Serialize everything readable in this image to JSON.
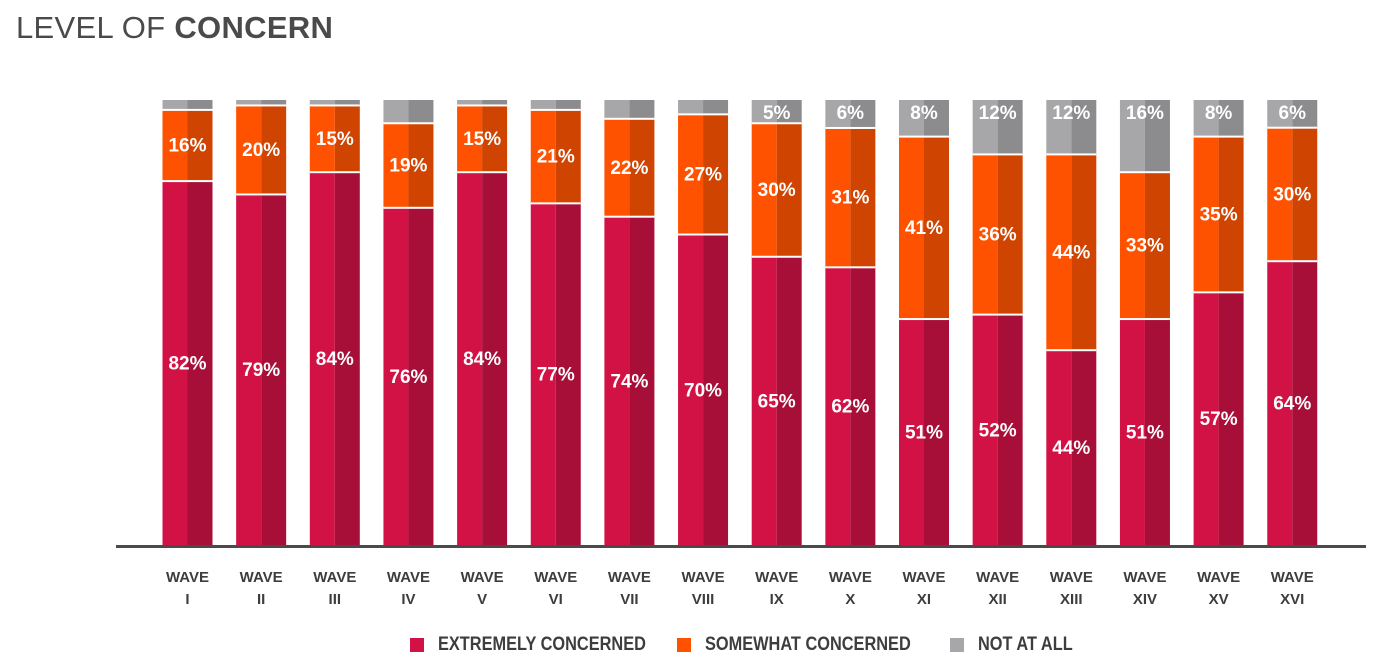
{
  "title": {
    "light": "LEVEL OF",
    "bold": "CONCERN"
  },
  "colors": {
    "extremely": "#d21245",
    "extremely_shade": "#a80f38",
    "somewhat": "#ff5200",
    "somewhat_shade": "#cf4400",
    "notatall": "#a7a7a9",
    "notatall_shade": "#8c8c8e",
    "axis": "#4a4a4a",
    "tick_text": "#3d3d3d"
  },
  "chart_data": {
    "type": "bar",
    "stacked": true,
    "title": "LEVEL OF CONCERN",
    "categories": [
      [
        "WAVE",
        "I"
      ],
      [
        "WAVE",
        "II"
      ],
      [
        "WAVE",
        "III"
      ],
      [
        "WAVE",
        "IV"
      ],
      [
        "WAVE",
        "V"
      ],
      [
        "WAVE",
        "VI"
      ],
      [
        "WAVE",
        "VII"
      ],
      [
        "WAVE",
        "VIII"
      ],
      [
        "WAVE",
        "IX"
      ],
      [
        "WAVE",
        "X"
      ],
      [
        "WAVE",
        "XI"
      ],
      [
        "WAVE",
        "XII"
      ],
      [
        "WAVE",
        "XIII"
      ],
      [
        "WAVE",
        "XIV"
      ],
      [
        "WAVE",
        "XV"
      ],
      [
        "WAVE",
        "XVI"
      ]
    ],
    "series": [
      {
        "name": "EXTREMELY CONCERNED",
        "color_key": "extremely",
        "values": [
          82,
          79,
          84,
          76,
          84,
          77,
          74,
          70,
          65,
          62,
          51,
          52,
          44,
          51,
          57,
          64
        ],
        "labels": [
          "82%",
          "79%",
          "84%",
          "76%",
          "84%",
          "77%",
          "74%",
          "70%",
          "65%",
          "62%",
          "51%",
          "52%",
          "44%",
          "51%",
          "57%",
          "64%"
        ]
      },
      {
        "name": "SOMEWHAT CONCERNED",
        "color_key": "somewhat",
        "values": [
          16,
          20,
          15,
          19,
          15,
          21,
          22,
          27,
          30,
          31,
          41,
          36,
          44,
          33,
          35,
          30
        ],
        "labels": [
          "16%",
          "20%",
          "15%",
          "19%",
          "15%",
          "21%",
          "22%",
          "27%",
          "30%",
          "31%",
          "41%",
          "36%",
          "44%",
          "33%",
          "35%",
          "30%"
        ]
      },
      {
        "name": "NOT AT ALL",
        "color_key": "notatall",
        "values": [
          2,
          1,
          1,
          5,
          1,
          2,
          4,
          3,
          5,
          6,
          8,
          12,
          12,
          16,
          8,
          6
        ],
        "labels": [
          "",
          "",
          "",
          "",
          "",
          "",
          "",
          "",
          "5%",
          "6%",
          "8%",
          "12%",
          "12%",
          "16%",
          "8%",
          "6%"
        ]
      }
    ],
    "ylim": [
      0,
      100
    ],
    "grid": false,
    "legend_position": "bottom"
  }
}
